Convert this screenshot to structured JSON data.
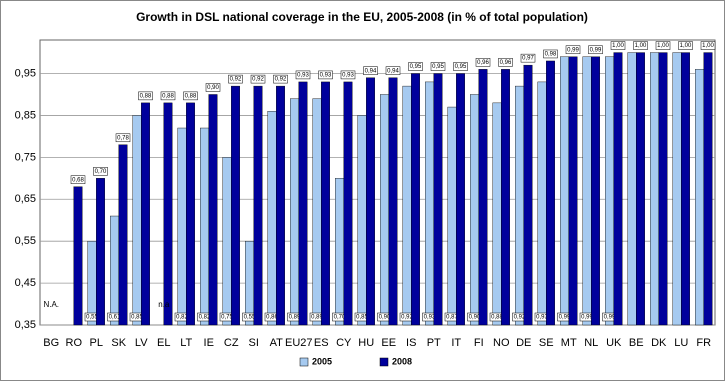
{
  "chart_data": {
    "type": "bar",
    "title": "Growth in DSL national coverage in the EU, 2005-2008 (in % of total population)",
    "categories": [
      "BG",
      "RO",
      "PL",
      "SK",
      "LV",
      "EL",
      "LT",
      "IE",
      "CZ",
      "SI",
      "AT",
      "EU27",
      "ES",
      "CY",
      "HU",
      "EE",
      "IS",
      "PT",
      "IT",
      "FI",
      "NO",
      "DE",
      "SE",
      "MT",
      "NL",
      "UK",
      "BE",
      "DK",
      "LU",
      "FR"
    ],
    "series": [
      {
        "name": "2005",
        "color": "#a6caf0",
        "values": [
          null,
          null,
          0.55,
          0.61,
          0.85,
          null,
          0.82,
          0.82,
          0.75,
          0.55,
          0.86,
          0.89,
          0.89,
          0.7,
          0.85,
          0.9,
          0.92,
          0.93,
          0.87,
          0.9,
          0.88,
          0.92,
          0.93,
          0.99,
          0.99,
          0.99,
          1.0,
          1.0,
          1.0,
          0.96
        ],
        "value_labels": [
          null,
          null,
          "0,55",
          "0,61",
          "0,85",
          null,
          "0,82",
          "0,82",
          "0,75",
          "0,55",
          "0,86",
          "0,89",
          "0,89",
          "0,70",
          "0,85",
          "0,90",
          "0,92",
          "0,93",
          "0,87",
          "0,90",
          "0,88",
          "0,92",
          "0,93",
          "0,99",
          "0,99",
          "0,99",
          null,
          null,
          null,
          null
        ]
      },
      {
        "name": "2008",
        "color": "#00009c",
        "values": [
          null,
          0.68,
          0.7,
          0.78,
          0.88,
          0.88,
          0.88,
          0.9,
          0.92,
          0.92,
          0.92,
          0.93,
          0.93,
          0.93,
          0.94,
          0.94,
          0.95,
          0.95,
          0.95,
          0.96,
          0.96,
          0.97,
          0.98,
          0.99,
          0.99,
          1.0,
          1.0,
          1.0,
          1.0,
          1.0
        ],
        "value_labels": [
          null,
          "0,68",
          "0,70",
          "0,78",
          "0,88",
          "0,88",
          "0,88",
          "0,90",
          "0,92",
          "0,92",
          "0,92",
          "0,93",
          "0,93",
          "0,93",
          "0,94",
          "0,94",
          "0,95",
          "0,95",
          "0,95",
          "0,96",
          "0,96",
          "0,97",
          "0,98",
          "0,99",
          "0,99",
          "1,00",
          "1,00",
          "1,00",
          "1,00",
          "1,00"
        ]
      }
    ],
    "annotations": [
      {
        "text": "N.A.",
        "category": "BG"
      },
      {
        "text": "n.a",
        "category": "EL"
      }
    ],
    "ylim": [
      0.35,
      1.03
    ],
    "yticks": [
      {
        "value": 0.35,
        "label": "0,35"
      },
      {
        "value": 0.45,
        "label": "0,45"
      },
      {
        "value": 0.55,
        "label": "0,55"
      },
      {
        "value": 0.65,
        "label": "0,65"
      },
      {
        "value": 0.75,
        "label": "0,75"
      },
      {
        "value": 0.85,
        "label": "0,85"
      },
      {
        "value": 0.95,
        "label": "0,95"
      }
    ],
    "grid": true
  }
}
